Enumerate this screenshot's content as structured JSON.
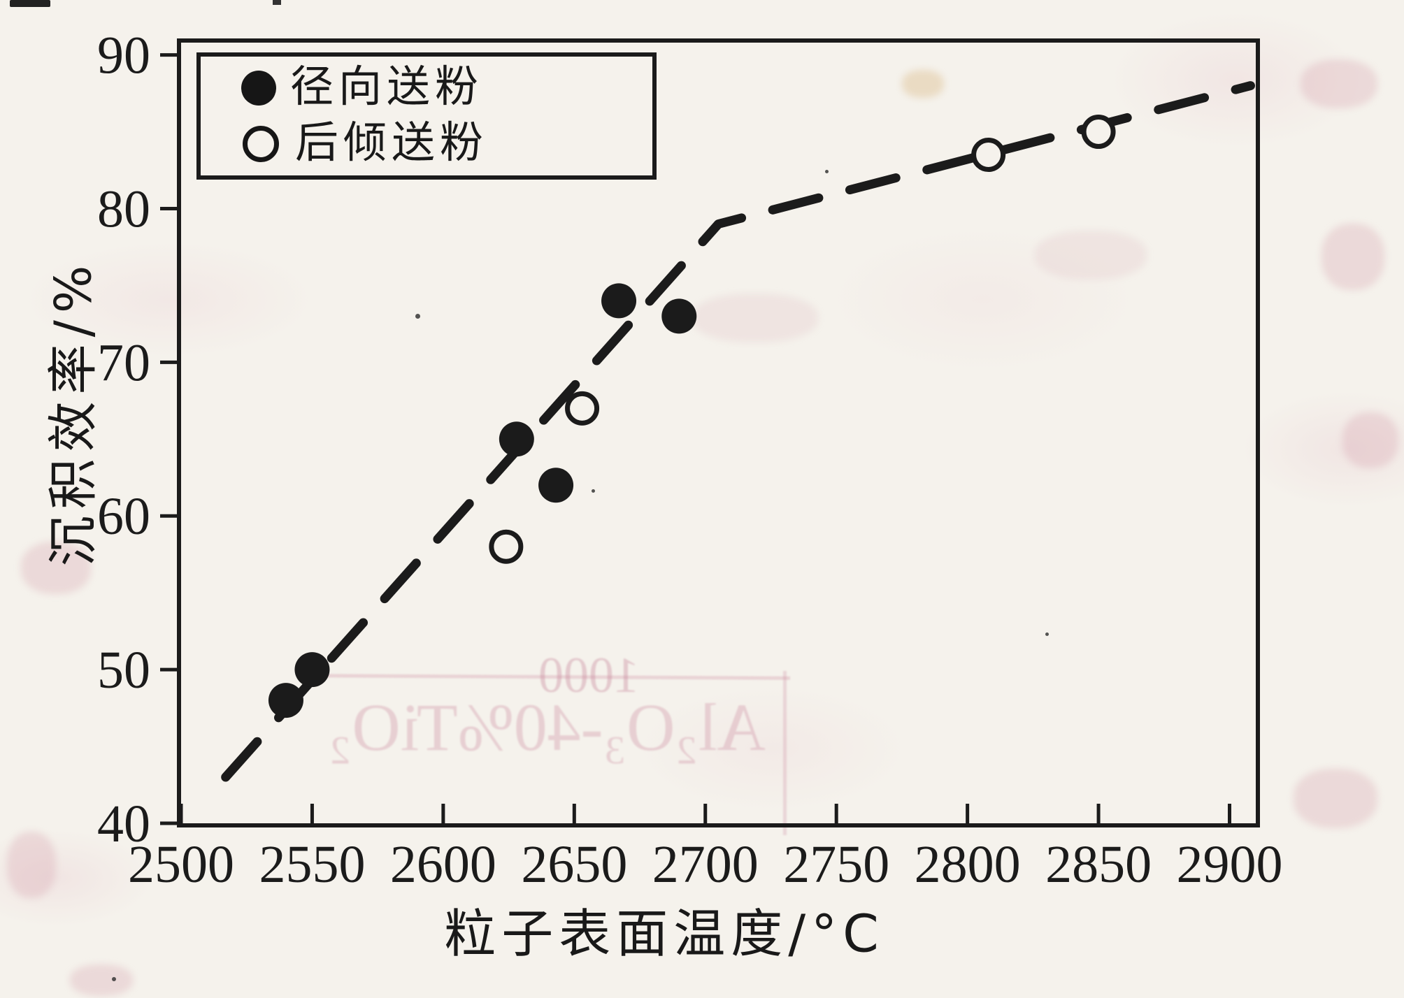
{
  "axes": {
    "x_title": "粒子表面温度/°C",
    "y_title": "沉积效率/%"
  },
  "legend": {
    "items": [
      {
        "label": "径向送粉",
        "marker": "filled-circle"
      },
      {
        "label": "后倾送粉",
        "marker": "open-circle"
      }
    ]
  },
  "colors": {
    "ink": "#1b1b1b",
    "paper": "#f5f2ec",
    "bleed_pink": "#cd8ca0"
  },
  "chart_data": {
    "type": "scatter",
    "title": "",
    "xlabel": "粒子表面温度/°C",
    "ylabel": "沉积效率/%",
    "xlim": [
      2500,
      2910
    ],
    "ylim": [
      40,
      90.8
    ],
    "xticks": [
      2500,
      2550,
      2600,
      2650,
      2700,
      2750,
      2800,
      2850,
      2900
    ],
    "yticks": [
      40,
      50,
      60,
      70,
      80,
      90
    ],
    "grid": false,
    "legend_position": "top-left",
    "series": [
      {
        "name": "径向送粉",
        "marker": "filled-circle",
        "points": [
          [
            2540,
            48
          ],
          [
            2550,
            50
          ],
          [
            2628,
            65
          ],
          [
            2643,
            62
          ],
          [
            2667,
            74
          ],
          [
            2690,
            73
          ]
        ]
      },
      {
        "name": "后倾送粉",
        "marker": "open-circle",
        "points": [
          [
            2624,
            58
          ],
          [
            2653,
            67
          ],
          [
            2808,
            83.5
          ],
          [
            2850,
            85
          ]
        ]
      }
    ],
    "trend_line": {
      "style": "dashed",
      "points": [
        [
          2517,
          43
        ],
        [
          2705,
          79
        ],
        [
          2908,
          88
        ]
      ]
    }
  },
  "artifacts": {
    "bleed_text_primary": "Al₂O₃-40%TiO₂",
    "bleed_text_secondary": "1000"
  }
}
